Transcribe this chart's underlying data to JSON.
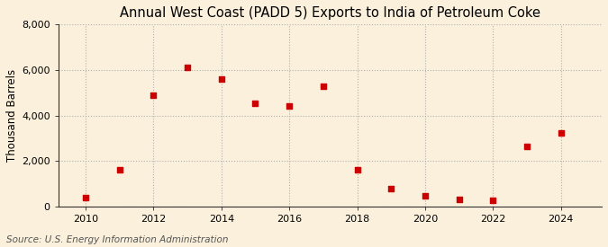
{
  "title": "Annual West Coast (PADD 5) Exports to India of Petroleum Coke",
  "ylabel": "Thousand Barrels",
  "source": "Source: U.S. Energy Information Administration",
  "years": [
    2010,
    2011,
    2012,
    2013,
    2014,
    2015,
    2016,
    2017,
    2018,
    2019,
    2020,
    2021,
    2022,
    2023,
    2024
  ],
  "values": [
    400,
    1600,
    4900,
    6100,
    5600,
    4550,
    4400,
    5300,
    1600,
    800,
    450,
    300,
    250,
    2650,
    3250
  ],
  "marker_color": "#CC0000",
  "marker_size": 20,
  "background_color": "#FAF0DC",
  "plot_bg_color": "#FAF0DC",
  "grid_color": "#AAAAAA",
  "ylim": [
    0,
    8000
  ],
  "yticks": [
    0,
    2000,
    4000,
    6000,
    8000
  ],
  "xticks": [
    2010,
    2012,
    2014,
    2016,
    2018,
    2020,
    2022,
    2024
  ],
  "title_fontsize": 10.5,
  "label_fontsize": 8.5,
  "tick_fontsize": 8,
  "source_fontsize": 7.5
}
